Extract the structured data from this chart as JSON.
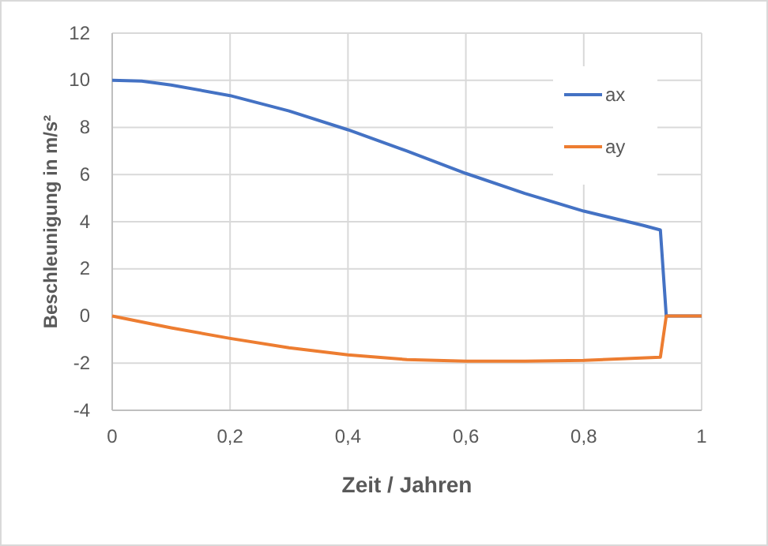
{
  "chart_data": {
    "type": "line",
    "xlabel": "Zeit / Jahren",
    "ylabel": "Beschleunigung in m/s²",
    "xlim": [
      0,
      1
    ],
    "xticks": [
      0,
      {
        "value": 0.2,
        "label": "0,2"
      },
      {
        "value": 0.4,
        "label": "0,4"
      },
      {
        "value": 0.6,
        "label": "0,6"
      },
      {
        "value": 0.8,
        "label": "0,8"
      },
      1
    ],
    "ylim": [
      -4,
      12
    ],
    "yticks": [
      -4,
      -2,
      0,
      2,
      4,
      6,
      8,
      10,
      12
    ],
    "grid": true,
    "legend": "top right",
    "marker": "none",
    "line_style": "solid",
    "series": [
      {
        "name": "ax",
        "color": "#4472c4",
        "x": [
          0,
          0.05,
          0.1,
          0.2,
          0.3,
          0.4,
          0.5,
          0.6,
          0.7,
          0.8,
          0.9,
          0.93,
          0.94,
          1
        ],
        "values": [
          10,
          9.97,
          9.8,
          9.35,
          8.7,
          7.9,
          7.0,
          6.05,
          5.2,
          4.45,
          3.85,
          3.65,
          0,
          0
        ]
      },
      {
        "name": "ay",
        "color": "#ed7d31",
        "x": [
          0,
          0.1,
          0.2,
          0.3,
          0.4,
          0.5,
          0.6,
          0.7,
          0.8,
          0.93,
          0.94,
          1
        ],
        "values": [
          0,
          -0.5,
          -0.95,
          -1.35,
          -1.65,
          -1.85,
          -1.92,
          -1.92,
          -1.88,
          -1.75,
          0,
          0
        ]
      }
    ]
  }
}
